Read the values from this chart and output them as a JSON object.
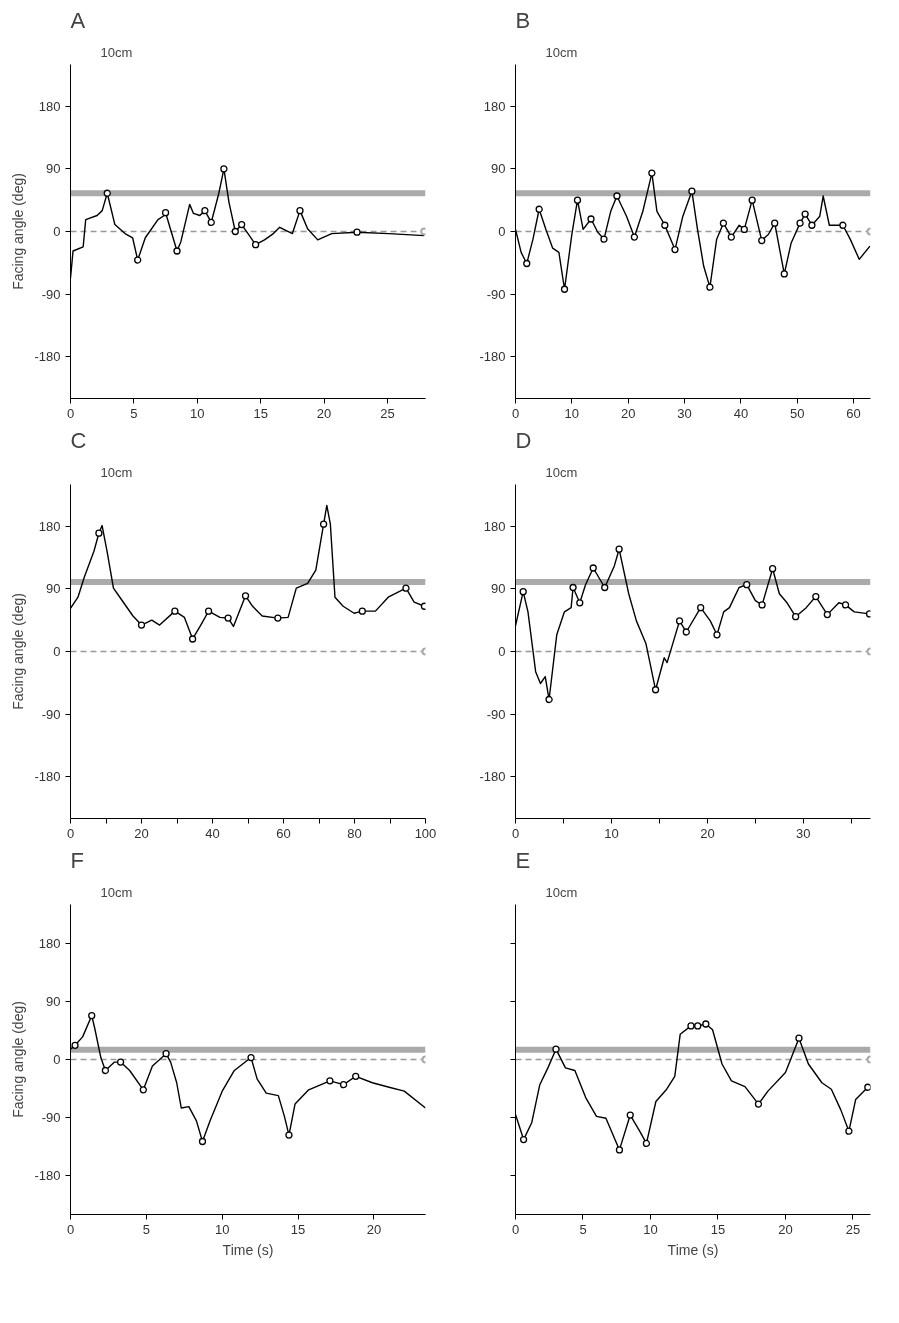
{
  "chart_data": [
    {
      "type": "line",
      "title": "A",
      "annotations": [
        "10cm"
      ],
      "ylabel": "Facing angle (deg)",
      "xlim": [
        0,
        28
      ],
      "xticks": [
        0,
        5,
        10,
        15,
        20,
        25
      ],
      "ylim": [
        -240,
        240
      ],
      "yticks": [
        180,
        90,
        0,
        -90,
        -180
      ],
      "ref_lines": [
        {
          "axis": "y",
          "value": 55,
          "color": "#aaaaaa",
          "line_style": "solid"
        },
        {
          "axis": "y",
          "value": 0,
          "color": "#999999",
          "line_style": "dashed"
        }
      ],
      "series": [
        {
          "color": "#000000",
          "x": [
            0,
            0.2,
            1,
            1.2,
            2.1,
            2.5,
            2.9,
            3.5,
            4.3,
            4.9,
            5.3,
            5.9,
            6.9,
            7.4,
            7.5,
            8.4,
            8.7,
            9.4,
            9.7,
            10.2,
            10.6,
            11.1,
            11.7,
            12.1,
            12.5,
            13,
            13.5,
            14,
            14.6,
            15.3,
            16,
            16.5,
            17.5,
            18.1,
            18.7,
            19.5,
            20.6,
            22.6,
            25.1,
            27.9
          ],
          "values": [
            -67,
            -28,
            -22,
            17,
            23,
            30,
            55,
            10,
            -3,
            -9,
            -41,
            -9,
            17,
            23,
            27,
            -28,
            -15,
            39,
            26,
            23,
            30,
            13,
            55,
            90,
            42,
            0,
            10,
            -3,
            -19,
            -12,
            -3,
            6,
            -3,
            30,
            4,
            -12,
            -3,
            -1,
            -3,
            -6
          ]
        },
        {
          "type": "scatter",
          "marker": "circle",
          "color": "#000000",
          "x": [
            2.9,
            5.3,
            7.5,
            8.4,
            10.6,
            11.1,
            12.1,
            13,
            13.5,
            14.6,
            18.1,
            22.6
          ],
          "values": [
            55,
            -41,
            27,
            -28,
            30,
            13,
            90,
            0,
            10,
            -19,
            30,
            -1
          ]
        },
        {
          "type": "scatter",
          "marker": "circle",
          "color": "#aaaaaa",
          "x": [
            27.9
          ],
          "values": [
            0
          ]
        }
      ]
    },
    {
      "type": "line",
      "title": "B",
      "annotations": [
        "10cm"
      ],
      "xlim": [
        0,
        63
      ],
      "xticks": [
        0,
        10,
        20,
        30,
        40,
        50,
        60
      ],
      "ylim": [
        -240,
        240
      ],
      "yticks": [
        180,
        90,
        0,
        -90,
        -180
      ],
      "ref_lines": [
        {
          "axis": "y",
          "value": 55,
          "color": "#aaaaaa",
          "line_style": "solid"
        },
        {
          "axis": "y",
          "value": 0,
          "color": "#999999",
          "line_style": "dashed"
        }
      ],
      "series": [
        {
          "color": "#000000",
          "x": [
            0,
            1,
            2,
            3.1,
            4.2,
            5.4,
            6.6,
            7.7,
            8.7,
            10,
            11,
            12,
            13.4,
            14.6,
            15.7,
            16.9,
            18,
            19.7,
            21.1,
            22.6,
            24.2,
            25.1,
            26.5,
            28.3,
            29.7,
            31.3,
            32.3,
            33.4,
            34.5,
            35.7,
            36.9,
            38.3,
            39.7,
            40.6,
            42,
            43.7,
            44.9,
            46,
            47.7,
            48.9,
            50.5,
            51.4,
            52.6,
            54,
            54.6,
            55.7,
            58.1,
            59.4,
            61,
            62.9
          ],
          "values": [
            3,
            -30,
            -46,
            -11,
            32,
            3,
            -24,
            -30,
            -83,
            -4,
            45,
            3,
            18,
            -1,
            -11,
            29,
            51,
            22,
            -8,
            29,
            84,
            29,
            9,
            -26,
            22,
            58,
            3,
            -50,
            -80,
            -11,
            12,
            -8,
            9,
            3,
            45,
            -13,
            -4,
            12,
            -61,
            -17,
            12,
            25,
            9,
            22,
            51,
            9,
            9,
            -11,
            -40,
            -21
          ]
        },
        {
          "type": "scatter",
          "marker": "circle",
          "color": "#000000",
          "x": [
            2,
            4.2,
            8.7,
            11,
            13.4,
            15.7,
            18,
            21.1,
            24.2,
            26.5,
            28.3,
            31.3,
            34.5,
            36.9,
            38.3,
            40.6,
            42,
            43.7,
            46,
            47.7,
            50.5,
            51.4,
            52.6,
            58.1
          ],
          "values": [
            -46,
            32,
            -83,
            45,
            18,
            -11,
            51,
            -8,
            84,
            9,
            -26,
            58,
            -80,
            12,
            -8,
            3,
            45,
            -13,
            12,
            -61,
            12,
            25,
            9,
            9
          ]
        },
        {
          "type": "scatter",
          "marker": "circle",
          "color": "#aaaaaa",
          "x": [
            63
          ],
          "values": [
            0
          ]
        }
      ]
    },
    {
      "type": "line",
      "title": "C",
      "annotations": [
        "10cm"
      ],
      "ylabel": "Facing angle (deg)",
      "xlim": [
        0,
        100
      ],
      "xticks": [
        0,
        {
          "value": 10,
          "label": null
        },
        20,
        {
          "value": 30,
          "label": null
        },
        40,
        {
          "value": 50,
          "label": null
        },
        60,
        {
          "value": 70,
          "label": null
        },
        80,
        {
          "value": 90,
          "label": null
        },
        100
      ],
      "ylim": [
        -240,
        240
      ],
      "yticks": [
        180,
        90,
        0,
        -90,
        -180
      ],
      "ref_lines": [
        {
          "axis": "y",
          "value": 100,
          "color": "#aaaaaa",
          "line_style": "solid"
        },
        {
          "axis": "y",
          "value": 0,
          "color": "#999999",
          "line_style": "dashed"
        }
      ],
      "series": [
        {
          "color": "#000000",
          "x": [
            0,
            2.1,
            3.9,
            6.6,
            8,
            8.9,
            10.3,
            12.1,
            13.9,
            17.6,
            20,
            22.9,
            25.1,
            29.4,
            32.1,
            34.4,
            36.7,
            38.9,
            42.1,
            44.4,
            45.9,
            49.3,
            51.3,
            54,
            58.4,
            61.3,
            63.6,
            66.8,
            69.1,
            71.3,
            72.2,
            73.2,
            74.5,
            76.8,
            79.9,
            82.2,
            85.9,
            89.5,
            94.5,
            96.8,
            99.7
          ],
          "values": [
            62,
            78,
            107,
            144,
            170,
            181,
            144,
            91,
            78,
            51,
            38,
            45,
            38,
            58,
            49,
            18,
            38,
            58,
            49,
            48,
            36,
            80,
            65,
            51,
            48,
            49,
            91,
            98,
            117,
            183,
            210,
            183,
            78,
            65,
            55,
            58,
            58,
            78,
            91,
            71,
            65
          ]
        },
        {
          "type": "scatter",
          "marker": "circle",
          "color": "#000000",
          "x": [
            8,
            20,
            29.4,
            34.4,
            38.9,
            44.4,
            49.3,
            58.4,
            71.3,
            82.2,
            94.5,
            99.7
          ],
          "values": [
            170,
            38,
            58,
            18,
            58,
            48,
            80,
            48,
            183,
            58,
            91,
            65
          ]
        },
        {
          "type": "scatter",
          "marker": "circle",
          "color": "#aaaaaa",
          "x": [
            100
          ],
          "values": [
            0
          ]
        }
      ]
    },
    {
      "type": "line",
      "title": "D",
      "annotations": [
        "10cm"
      ],
      "xlim": [
        0,
        37
      ],
      "xticks": [
        0,
        {
          "value": 5,
          "label": null
        },
        10,
        {
          "value": 15,
          "label": null
        },
        20,
        {
          "value": 25,
          "label": null
        },
        30,
        {
          "value": 35,
          "label": null
        }
      ],
      "ylim": [
        -240,
        240
      ],
      "yticks": [
        180,
        90,
        0,
        -90,
        -180
      ],
      "ref_lines": [
        {
          "axis": "y",
          "value": 100,
          "color": "#aaaaaa",
          "line_style": "solid"
        },
        {
          "axis": "y",
          "value": 0,
          "color": "#999999",
          "line_style": "dashed"
        }
      ],
      "series": [
        {
          "color": "#000000",
          "x": [
            0,
            0.8,
            1.3,
            2.1,
            2.6,
            3.1,
            3.5,
            4.3,
            5.1,
            5.8,
            6,
            6.7,
            7.3,
            8.1,
            9.3,
            10.3,
            10.8,
            11.8,
            12.6,
            13.6,
            14.6,
            15.5,
            15.8,
            17.1,
            17.8,
            19.3,
            20.3,
            21,
            21.7,
            22.3,
            23.3,
            24.1,
            25,
            25.7,
            26.8,
            27.5,
            28.3,
            29.2,
            30.3,
            31.3,
            32.5,
            33.7,
            34.4,
            35.3,
            36.9
          ],
          "values": [
            37,
            86,
            57,
            -29,
            -46,
            -36,
            -69,
            24,
            57,
            63,
            92,
            70,
            96,
            120,
            92,
            123,
            147,
            83,
            44,
            11,
            -55,
            -9,
            -16,
            44,
            28,
            63,
            44,
            24,
            57,
            63,
            92,
            96,
            73,
            67,
            119,
            83,
            70,
            50,
            63,
            79,
            53,
            70,
            67,
            57,
            54
          ]
        },
        {
          "type": "scatter",
          "marker": "circle",
          "color": "#000000",
          "x": [
            0.8,
            3.5,
            6,
            6.7,
            8.1,
            9.3,
            10.8,
            14.6,
            17.1,
            17.8,
            19.3,
            21,
            24.1,
            25.7,
            26.8,
            29.2,
            31.3,
            32.5,
            34.4,
            36.9
          ],
          "values": [
            86,
            -69,
            92,
            70,
            120,
            92,
            147,
            -55,
            44,
            28,
            63,
            24,
            96,
            67,
            119,
            50,
            79,
            53,
            67,
            54
          ]
        },
        {
          "type": "scatter",
          "marker": "circle",
          "color": "#aaaaaa",
          "x": [
            37
          ],
          "values": [
            0
          ]
        }
      ]
    },
    {
      "type": "line",
      "title": "F",
      "annotations": [
        "10cm"
      ],
      "ylabel": "Facing angle (deg)",
      "xlabel": "Time (s)",
      "xlim": [
        0,
        23.4
      ],
      "xticks": [
        0,
        5,
        10,
        15,
        20
      ],
      "ylim": [
        -240,
        240
      ],
      "yticks": [
        180,
        90,
        0,
        -90,
        -180
      ],
      "ref_lines": [
        {
          "axis": "y",
          "value": 15,
          "color": "#aaaaaa",
          "line_style": "solid"
        },
        {
          "axis": "y",
          "value": 0,
          "color": "#999999",
          "line_style": "dashed"
        }
      ],
      "series": [
        {
          "color": "#000000",
          "x": [
            0,
            0.3,
            0.8,
            1.4,
            1.6,
            2,
            2.3,
            2.9,
            3.3,
            3.9,
            4.8,
            5.4,
            6.3,
            6.6,
            7,
            7.3,
            7.8,
            8.3,
            8.7,
            9.2,
            10,
            10.8,
            11.9,
            12.3,
            12.9,
            13.7,
            14.1,
            14.4,
            14.8,
            15.7,
            17.1,
            18,
            18.8,
            19.9,
            21,
            22,
            23.4
          ],
          "values": [
            16,
            22,
            35,
            68,
            48,
            3,
            -17,
            -4,
            -4,
            -17,
            -47,
            -10,
            9,
            -4,
            -36,
            -75,
            -73,
            -95,
            -127,
            -95,
            -49,
            -17,
            3,
            -30,
            -52,
            -56,
            -88,
            -117,
            -69,
            -47,
            -33,
            -39,
            -26,
            -36,
            -43,
            -49,
            -75
          ]
        },
        {
          "type": "scatter",
          "marker": "circle",
          "color": "#000000",
          "x": [
            0.3,
            1.4,
            2.3,
            3.3,
            4.8,
            6.3,
            8.7,
            11.9,
            14.4,
            17.1,
            18,
            18.8
          ],
          "values": [
            22,
            68,
            -17,
            -4,
            -47,
            9,
            -127,
            3,
            -117,
            -33,
            -39,
            -26
          ]
        },
        {
          "type": "scatter",
          "marker": "circle",
          "color": "#aaaaaa",
          "x": [
            23.4
          ],
          "values": [
            0
          ]
        }
      ]
    },
    {
      "type": "line",
      "title": "E",
      "annotations": [
        "10cm"
      ],
      "xlabel": "Time (s)",
      "tick_labels": "x",
      "xlim": [
        0,
        26.3
      ],
      "xticks": [
        0,
        5,
        10,
        15,
        20,
        25
      ],
      "ylim": [
        -240,
        240
      ],
      "yticks": [
        {
          "value": 180,
          "label": null
        },
        {
          "value": 90,
          "label": null
        },
        {
          "value": 0,
          "label": null
        },
        {
          "value": -90,
          "label": null
        },
        {
          "value": -180,
          "label": null
        }
      ],
      "ref_lines": [
        {
          "axis": "y",
          "value": 15,
          "color": "#aaaaaa",
          "line_style": "solid"
        },
        {
          "axis": "y",
          "value": 0,
          "color": "#999999",
          "line_style": "dashed"
        }
      ],
      "series": [
        {
          "color": "#000000",
          "x": [
            0,
            0.6,
            1.2,
            1.8,
            2.4,
            3,
            3.7,
            4.4,
            5.2,
            6,
            6.7,
            7.7,
            8.5,
            9.2,
            9.7,
            10.4,
            11.2,
            11.8,
            12.2,
            13,
            13.5,
            14.1,
            14.6,
            15.3,
            16,
            17,
            18,
            18.7,
            20,
            21,
            21.7,
            22.7,
            23.4,
            24.1,
            24.7,
            25.2,
            26.1
          ],
          "values": [
            -85,
            -124,
            -98,
            -39,
            -13,
            16,
            -13,
            -17,
            -59,
            -88,
            -91,
            -140,
            -86,
            -111,
            -130,
            -65,
            -46,
            -26,
            39,
            52,
            52,
            55,
            46,
            -7,
            -33,
            -42,
            -69,
            -49,
            -20,
            33,
            -7,
            -36,
            -46,
            -78,
            -111,
            -62,
            -43
          ]
        },
        {
          "type": "scatter",
          "marker": "circle",
          "color": "#000000",
          "x": [
            0.6,
            3,
            7.7,
            8.5,
            9.7,
            13,
            13.5,
            14.1,
            18,
            21,
            24.7,
            26.1
          ],
          "values": [
            -124,
            16,
            -140,
            -86,
            -130,
            52,
            52,
            55,
            -69,
            33,
            -111,
            -43
          ]
        },
        {
          "type": "scatter",
          "marker": "circle",
          "color": "#aaaaaa",
          "x": [
            26.3
          ],
          "values": [
            0
          ]
        }
      ]
    }
  ]
}
